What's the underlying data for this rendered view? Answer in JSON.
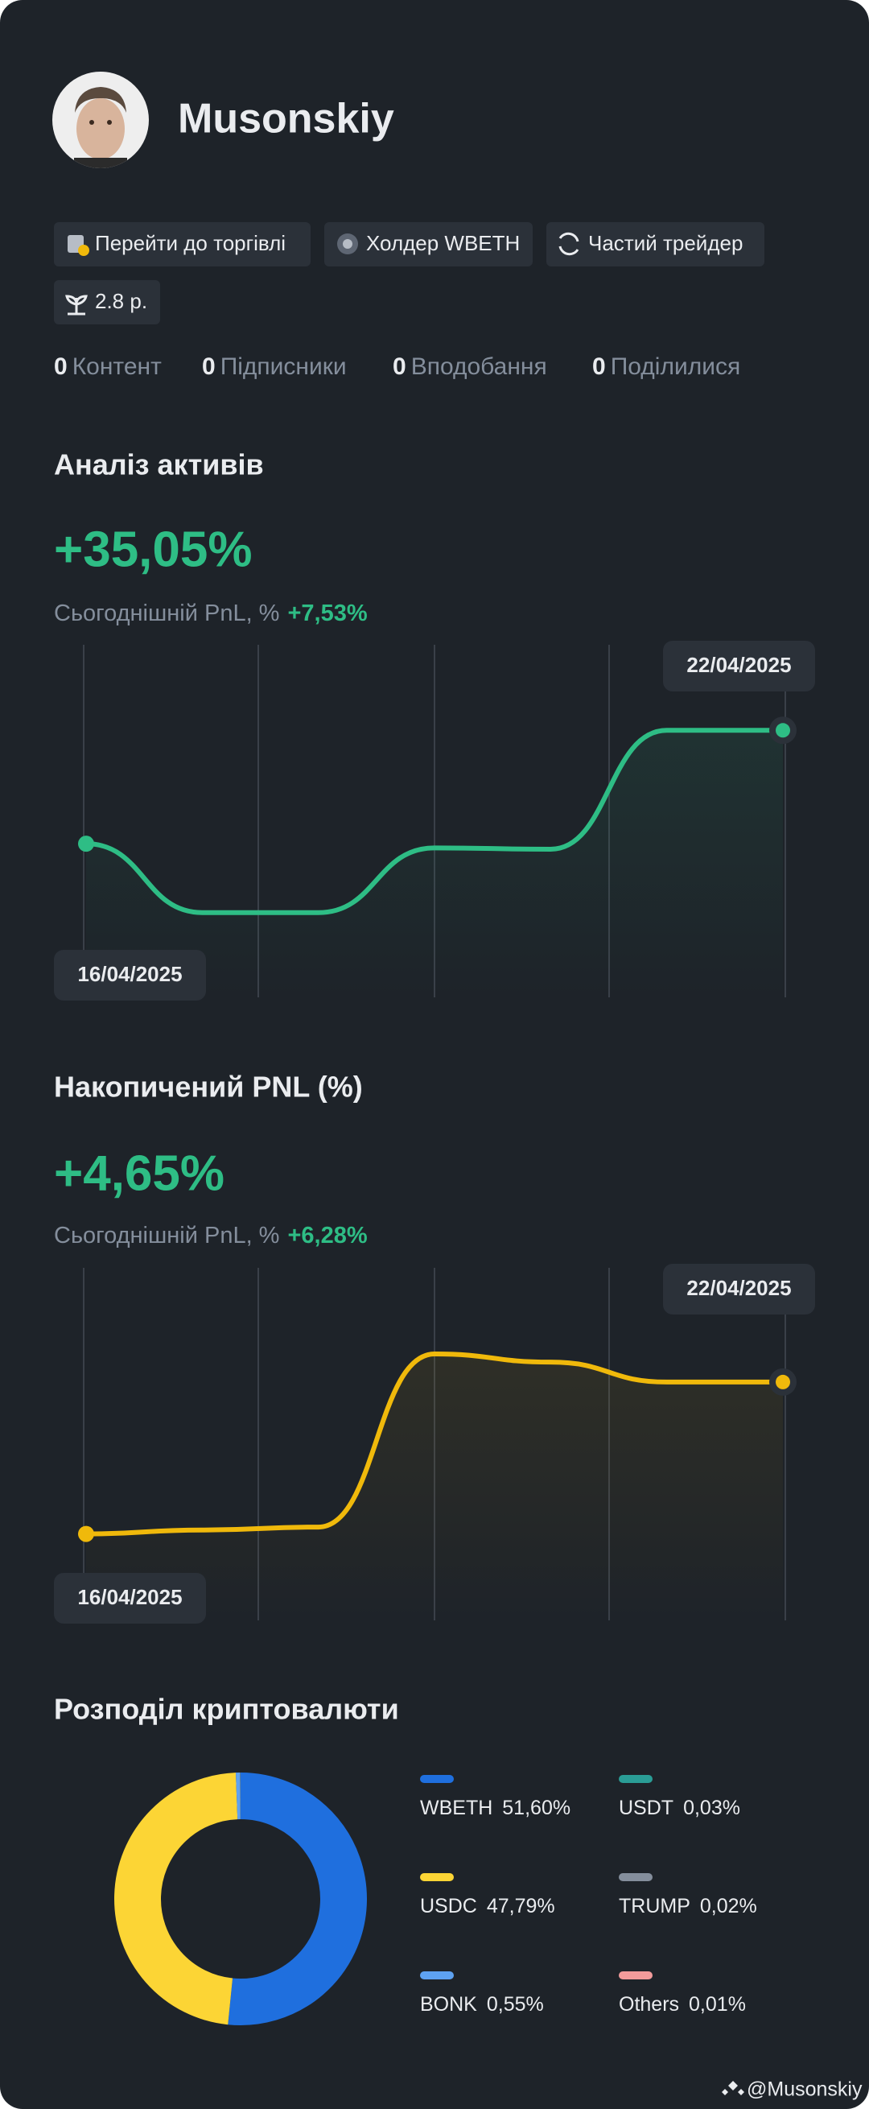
{
  "profile": {
    "name": "Musonskiy",
    "tags": [
      "Перейти до торгівлі",
      "Холдер WBETH",
      "Частий трейдер",
      "2.8 р."
    ],
    "stats": [
      {
        "count": 0,
        "label": "Контент"
      },
      {
        "count": 0,
        "label": "Підписники"
      },
      {
        "count": 0,
        "label": "Вподобання"
      },
      {
        "count": 0,
        "label": "Поділилися"
      }
    ]
  },
  "chart_data": [
    {
      "type": "line",
      "title": "Аналіз активів",
      "headline": "+35,05%",
      "subtitle": "Сьогоднішній PnL, %",
      "subtitle_value": "+7,53%",
      "categories": [
        "16/04/2025",
        null,
        null,
        null,
        null,
        null,
        "22/04/2025"
      ],
      "series": [
        {
          "color": "#2ebd85",
          "values": [
            0,
            -21.3,
            -21.3,
            -1.3,
            -1.7,
            35.05,
            35.05
          ]
        }
      ],
      "ylim": [
        -45,
        59
      ]
    },
    {
      "type": "line",
      "title": "Накопичений PNL (%)",
      "headline": "+4,65%",
      "subtitle": "Сьогоднішній PnL, %",
      "subtitle_value": "+6,28%",
      "categories": [
        "16/04/2025",
        null,
        null,
        null,
        null,
        null,
        "22/04/2025"
      ],
      "series": [
        {
          "color": "#f0b90b",
          "values": [
            0,
            0.12,
            0.21,
            5.51,
            5.26,
            4.65,
            4.65
          ]
        }
      ],
      "ylim": [
        -2.4,
        7.9
      ]
    },
    {
      "type": "pie",
      "donut": true,
      "title": "Розподіл криптовалюти",
      "categories": [
        "WBETH",
        "USDC",
        "BONK",
        "USDT",
        "TRUMP",
        "Others"
      ],
      "values": [
        51.6,
        47.79,
        0.55,
        0.03,
        0.02,
        0.01
      ],
      "value_labels": [
        "51,60%",
        "47,79%",
        "0,55%",
        "0,03%",
        "0,02%",
        "0,01%"
      ],
      "colors": [
        "#1f6fde",
        "#fcd535",
        "#5ea2f2",
        "#2a9d96",
        "#848e9c",
        "#f29b9b"
      ]
    }
  ],
  "footer": "@Musonskiy"
}
